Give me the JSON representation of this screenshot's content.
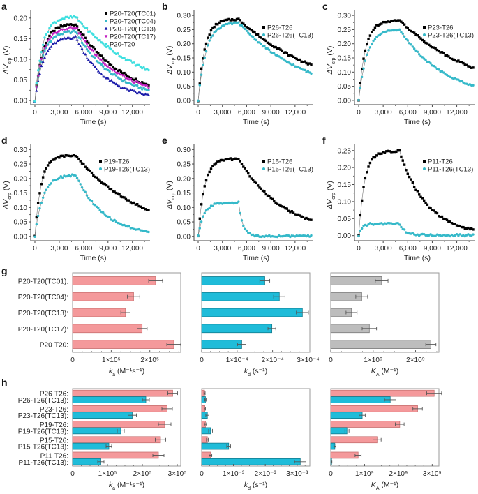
{
  "chart_data": [
    {
      "panel": "a",
      "type": "line",
      "xlabel": "Time (s)",
      "ylabel": "ΔV_crp (V)",
      "xlim": [
        0,
        14000
      ],
      "ylim": [
        -0.01,
        0.22
      ],
      "xticks": [
        0,
        3000,
        6000,
        9000,
        12000
      ],
      "xtick_labels": [
        "0",
        "3,000",
        "6,000",
        "9,000",
        "12,000"
      ],
      "yticks": [
        0.0,
        0.05,
        0.1,
        0.15,
        0.2
      ],
      "ytick_labels": [
        "0.00",
        "0.05",
        "0.10",
        "0.15",
        "0.20"
      ],
      "legend": "top-right",
      "series": [
        {
          "name": "P20-T20(TC01)",
          "color": "#000000",
          "marker": "square",
          "plateau": 0.186,
          "end": 0.038,
          "rise_k": 1.1
        },
        {
          "name": "P20-T20(TC04)",
          "color": "#35b9c9",
          "marker": "circle",
          "plateau": 0.168,
          "end": 0.025,
          "rise_k": 1.1
        },
        {
          "name": "P20-T20(TC13)",
          "color": "#1a1aaa",
          "marker": "triangle-up",
          "plateau": 0.155,
          "end": 0.013,
          "rise_k": 1.0
        },
        {
          "name": "P20-T20(TC17)",
          "color": "#c21bc2",
          "marker": "triangle-down",
          "plateau": 0.178,
          "end": 0.032,
          "rise_k": 1.1
        },
        {
          "name": "P20-T20",
          "color": "#3ee0e0",
          "marker": "circle",
          "plateau": 0.203,
          "end": 0.073,
          "rise_k": 1.2
        }
      ]
    },
    {
      "panel": "b",
      "type": "line",
      "xlabel": "Time (s)",
      "ylabel": "ΔV_crp (V)",
      "xlim": [
        0,
        14000
      ],
      "ylim": [
        -0.015,
        0.32
      ],
      "xticks": [
        0,
        3000,
        6000,
        9000,
        12000
      ],
      "xtick_labels": [
        "0",
        "3,000",
        "6,000",
        "9,000",
        "12,000"
      ],
      "yticks": [
        0.0,
        0.05,
        0.1,
        0.15,
        0.2,
        0.25,
        0.3
      ],
      "ytick_labels": [
        "0.00",
        "0.05",
        "0.10",
        "0.15",
        "0.20",
        "0.25",
        "0.30"
      ],
      "legend": "top-right",
      "series": [
        {
          "name": "P26-T26",
          "color": "#000000",
          "marker": "square",
          "plateau": 0.287,
          "end": 0.125,
          "rise_k": 1.3
        },
        {
          "name": "P26-T26(TC13)",
          "color": "#35b9c9",
          "marker": "circle",
          "plateau": 0.275,
          "end": 0.096,
          "rise_k": 1.1
        }
      ]
    },
    {
      "panel": "c",
      "type": "line",
      "xlabel": "Time (s)",
      "ylabel": "ΔV_crp (V)",
      "xlim": [
        0,
        14000
      ],
      "ylim": [
        -0.015,
        0.32
      ],
      "xticks": [
        0,
        3000,
        6000,
        9000,
        12000
      ],
      "xtick_labels": [
        "0",
        "3,000",
        "6,000",
        "9,000",
        "12,000"
      ],
      "yticks": [
        0.0,
        0.05,
        0.1,
        0.15,
        0.2,
        0.25,
        0.3
      ],
      "ytick_labels": [
        "0.00",
        "0.05",
        "0.10",
        "0.15",
        "0.20",
        "0.25",
        "0.30"
      ],
      "legend": "top-right",
      "series": [
        {
          "name": "P23-T26",
          "color": "#000000",
          "marker": "square",
          "plateau": 0.283,
          "end": 0.115,
          "rise_k": 1.3
        },
        {
          "name": "P23-T26(TC13)",
          "color": "#35b9c9",
          "marker": "circle",
          "plateau": 0.25,
          "end": 0.052,
          "rise_k": 1.1
        }
      ]
    },
    {
      "panel": "d",
      "type": "line",
      "xlabel": "Time (s)",
      "ylabel": "ΔV_crp (V)",
      "xlim": [
        0,
        14000
      ],
      "ylim": [
        -0.015,
        0.32
      ],
      "xticks": [
        0,
        3000,
        6000,
        9000,
        12000
      ],
      "xtick_labels": [
        "0",
        "3,000",
        "6,000",
        "9,000",
        "12,000"
      ],
      "yticks": [
        0.0,
        0.05,
        0.1,
        0.15,
        0.2,
        0.25,
        0.3
      ],
      "ytick_labels": [
        "0.00",
        "0.05",
        "0.10",
        "0.15",
        "0.20",
        "0.25",
        "0.30"
      ],
      "legend": "top-right",
      "series": [
        {
          "name": "P19-T26",
          "color": "#000000",
          "marker": "square",
          "plateau": 0.28,
          "end": 0.091,
          "rise_k": 1.4
        },
        {
          "name": "P19-T26(TC13)",
          "color": "#35b9c9",
          "marker": "circle",
          "plateau": 0.213,
          "end": 0.016,
          "rise_k": 1.1
        }
      ]
    },
    {
      "panel": "e",
      "type": "line",
      "xlabel": "Time (s)",
      "ylabel": "ΔV_crp (V)",
      "xlim": [
        0,
        14000
      ],
      "ylim": [
        -0.015,
        0.32
      ],
      "xticks": [
        0,
        3000,
        6000,
        9000,
        12000
      ],
      "xtick_labels": [
        "0",
        "3,000",
        "6,000",
        "9,000",
        "12,000"
      ],
      "yticks": [
        0.0,
        0.05,
        0.1,
        0.15,
        0.2,
        0.25,
        0.3
      ],
      "ytick_labels": [
        "0.00",
        "0.05",
        "0.10",
        "0.15",
        "0.20",
        "0.25",
        "0.30"
      ],
      "legend": "top-right",
      "series": [
        {
          "name": "P15-T26",
          "color": "#000000",
          "marker": "square",
          "plateau": 0.268,
          "end": 0.055,
          "rise_k": 1.4
        },
        {
          "name": "P15-T26(TC13)",
          "color": "#35b9c9",
          "marker": "circle",
          "plateau": 0.117,
          "end": 0.001,
          "rise_k": 1.5
        }
      ]
    },
    {
      "panel": "f",
      "type": "line",
      "xlabel": "Time (s)",
      "ylabel": "ΔV_crp (V)",
      "xlim": [
        0,
        14000
      ],
      "ylim": [
        -0.015,
        0.27
      ],
      "xticks": [
        0,
        3000,
        6000,
        9000,
        12000
      ],
      "xtick_labels": [
        "0",
        "3,000",
        "6,000",
        "9,000",
        "12,000"
      ],
      "yticks": [
        0.0,
        0.05,
        0.1,
        0.15,
        0.2,
        0.25
      ],
      "ytick_labels": [
        "0.00",
        "0.05",
        "0.10",
        "0.15",
        "0.20",
        "0.25"
      ],
      "legend": "top-right",
      "series": [
        {
          "name": "P11-T26",
          "color": "#000000",
          "marker": "square",
          "plateau": 0.248,
          "end": 0.017,
          "rise_k": 1.5
        },
        {
          "name": "P11-T26(TC13)",
          "color": "#35b9c9",
          "marker": "circle",
          "plateau": 0.035,
          "end": 0.001,
          "rise_k": 2.5
        }
      ]
    },
    {
      "panel": "g",
      "type": "bar",
      "orientation": "horizontal",
      "categories": [
        "P20-T20(TC01):",
        "P20-T20(TC04):",
        "P20-T20(TC13):",
        "P20-T20(TC17):",
        "P20-T20:"
      ],
      "subplots": [
        {
          "xlabel": "k_a (M⁻¹s⁻¹)",
          "xlim": [
            0,
            280000
          ],
          "xticks": [
            0,
            100000,
            200000
          ],
          "xtick_labels": [
            "0",
            "1×10⁵",
            "2×10⁵"
          ],
          "color": "#f4999b",
          "values": [
            215000,
            158000,
            137000,
            180000,
            262000
          ],
          "errors": [
            18000,
            16000,
            12000,
            13000,
            18000
          ]
        },
        {
          "xlabel": "k_d (s⁻¹)",
          "xlim": [
            0,
            0.000305
          ],
          "xticks": [
            0,
            0.0001,
            0.0002,
            0.0003
          ],
          "xtick_labels": [
            "0",
            "1×10⁻⁴",
            "2×10⁻⁴",
            "3×10⁻⁴"
          ],
          "color": "#1fbcd9",
          "values": [
            0.000178,
            0.000219,
            0.000284,
            0.000198,
            0.000113
          ],
          "errors": [
            1.4e-05,
            1.6e-05,
            1.7e-05,
            1.1e-05,
            1.2e-05
          ]
        },
        {
          "xlabel": "K_A (M⁻¹)",
          "xlim": [
            0,
            2550000000
          ],
          "xticks": [
            0,
            1000000000,
            2000000000
          ],
          "xtick_labels": [
            "0",
            "1×10⁹",
            "2×10⁹"
          ],
          "color": "#bdbdbd",
          "values": [
            1200000000,
            730000000,
            490000000,
            910000000,
            2360000000
          ],
          "errors": [
            150000000,
            140000000,
            130000000,
            170000000,
            120000000
          ]
        }
      ]
    },
    {
      "panel": "h",
      "type": "bar",
      "orientation": "horizontal",
      "categories": [
        "P26-T26:",
        "P26-T26(TC13):",
        "P23-T26:",
        "P23-T26(TC13):",
        "P19-T26:",
        "P19-T26(TC13):",
        "P15-T26:",
        "P15-T26(TC13):",
        "P11-T26:",
        "P11-T26(TC13):"
      ],
      "category_colors": [
        "#f4999b",
        "#1fbcd9",
        "#f4999b",
        "#1fbcd9",
        "#f4999b",
        "#1fbcd9",
        "#f4999b",
        "#1fbcd9",
        "#f4999b",
        "#1fbcd9"
      ],
      "subplots": [
        {
          "xlabel": "k_a (M⁻¹s⁻¹)",
          "xlim": [
            0,
            310000
          ],
          "xticks": [
            0,
            100000,
            200000,
            300000
          ],
          "xtick_labels": [
            "0",
            "1×10⁵",
            "2×10⁵",
            "3×10⁵"
          ],
          "values": [
            287000,
            210000,
            271000,
            171000,
            264000,
            138000,
            252000,
            104000,
            246000,
            81000
          ],
          "errors": [
            14000,
            10000,
            15000,
            12000,
            18000,
            10000,
            15000,
            8000,
            16000,
            9000
          ]
        },
        {
          "xlabel": "k_d (s⁻¹)",
          "xlim": [
            0,
            0.0034
          ],
          "xticks": [
            0,
            0.001,
            0.002,
            0.003
          ],
          "xtick_labels": [
            "0",
            "1×10⁻³",
            "2×10⁻³",
            "3×10⁻³"
          ],
          "values": [
            9e-05,
            0.00012,
            0.0001,
            0.00018,
            0.00012,
            0.00028,
            0.00018,
            0.00085,
            0.00028,
            0.0031
          ],
          "errors": [
            2e-05,
            2e-05,
            2e-05,
            5e-05,
            3e-05,
            6e-05,
            3e-05,
            6e-05,
            4e-05,
            0.00018
          ]
        },
        {
          "xlabel": "K_A (M⁻¹)",
          "xlim": [
            0,
            3200000000
          ],
          "xticks": [
            0,
            1000000000,
            2000000000,
            3000000000
          ],
          "xtick_labels": [
            "0",
            "1×10⁹",
            "2×10⁹",
            "3×10⁹"
          ],
          "values": [
            3060000000,
            1760000000,
            2570000000,
            930000000,
            2040000000,
            480000000,
            1370000000,
            120000000,
            810000000,
            25000000
          ],
          "errors": [
            220000000,
            170000000,
            140000000,
            90000000,
            130000000,
            60000000,
            120000000,
            30000000,
            90000000,
            10000000
          ]
        }
      ]
    }
  ],
  "panel_letters": [
    "a",
    "b",
    "c",
    "d",
    "e",
    "f",
    "g",
    "h"
  ]
}
